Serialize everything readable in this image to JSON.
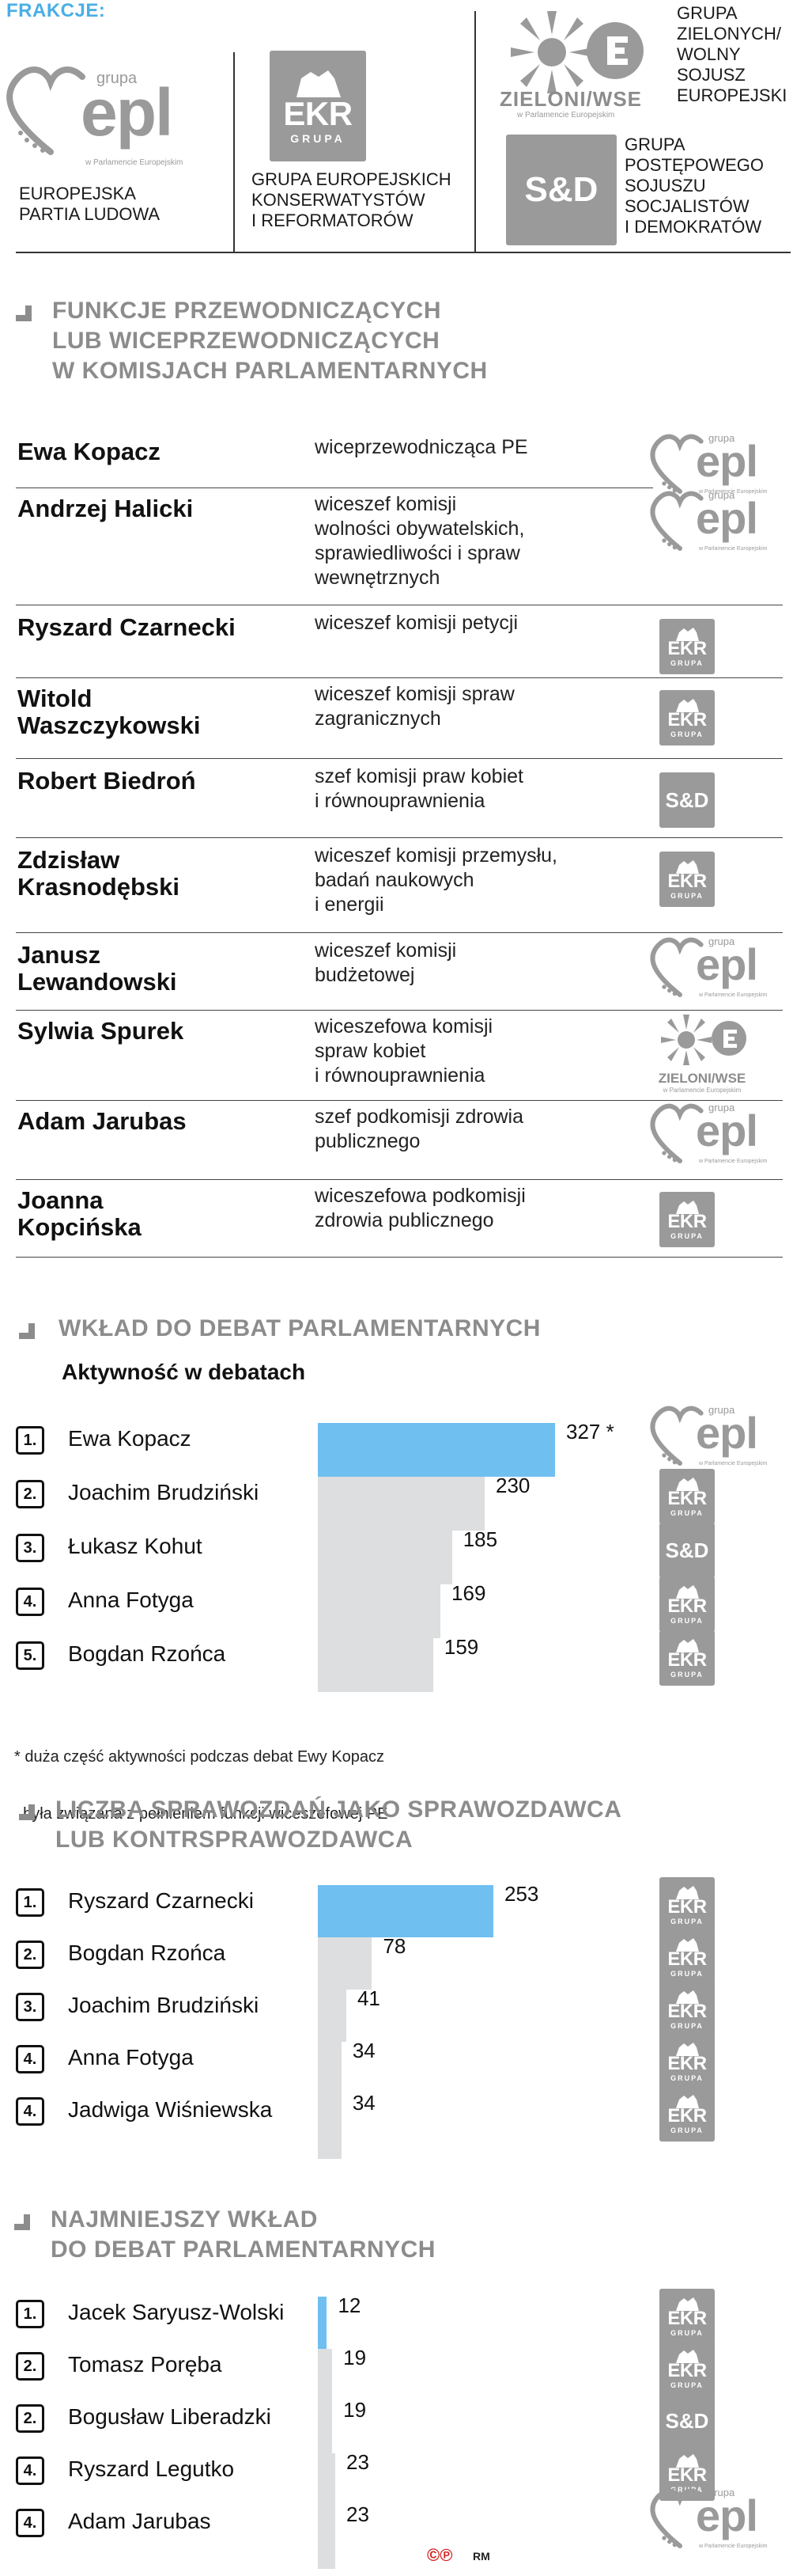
{
  "header": {
    "frakcje_label": "FRAKCJE:",
    "groups": {
      "epp": {
        "logo_small": "grupa",
        "logo_big": "epl",
        "logo_tag": "w Parlamencie Europejskim",
        "name_lines": [
          "EUROPEJSKA",
          "PARTIA LUDOWA"
        ]
      },
      "ecr": {
        "logo_main": "EKR",
        "logo_sub": "GRUPA",
        "name_lines": [
          "GRUPA EUROPEJSKICH",
          "KONSERWATYSTÓW",
          "I REFORMATORÓW"
        ]
      },
      "greens": {
        "logo_main": "ZIELONI/WSE",
        "logo_tag": "w Parlamencie Europejskim",
        "name_lines": [
          "GRUPA",
          "ZIELONYCH/",
          "WOLNY",
          "SOJUSZ",
          "EUROPEJSKI"
        ]
      },
      "sd": {
        "logo_main": "S&D",
        "name_lines": [
          "GRUPA",
          "POSTĘPOWEGO",
          "SOJUSZU",
          "SOCJALISTÓW",
          "I DEMOKRATÓW"
        ]
      }
    }
  },
  "section1": {
    "title_lines": [
      "FUNKCJE PRZEWODNICZĄCYCH",
      "LUB WICEPRZEWODNICZĄCYCH",
      "W KOMISJACH PARLAMENTARNYCH"
    ],
    "rows": [
      {
        "name": [
          "Ewa Kopacz"
        ],
        "role": [
          "wiceprzewodnicząca PE"
        ],
        "group": "epp"
      },
      {
        "name": [
          "Andrzej Halicki"
        ],
        "role": [
          "wiceszef komisji",
          "wolności obywatelskich,",
          "sprawiedliwości i spraw",
          "wewnętrznych"
        ],
        "group": "epp"
      },
      {
        "name": [
          "Ryszard Czarnecki"
        ],
        "role": [
          "wiceszef komisji petycji"
        ],
        "group": "ecr"
      },
      {
        "name": [
          "Witold",
          "Waszczykowski"
        ],
        "role": [
          "wiceszef komisji spraw",
          "zagranicznych"
        ],
        "group": "ecr"
      },
      {
        "name": [
          "Robert Biedroń"
        ],
        "role": [
          "szef komisji praw kobiet",
          "i równouprawnienia"
        ],
        "group": "sd"
      },
      {
        "name": [
          "Zdzisław",
          "Krasnodębski"
        ],
        "role": [
          "wiceszef komisji przemysłu,",
          "badań naukowych",
          "i energii"
        ],
        "group": "ecr"
      },
      {
        "name": [
          "Janusz",
          "Lewandowski"
        ],
        "role": [
          "wiceszef komisji",
          "budżetowej"
        ],
        "group": "epp"
      },
      {
        "name": [
          "Sylwia Spurek"
        ],
        "role": [
          "wiceszefowa komisji",
          "spraw kobiet",
          "i równouprawnienia"
        ],
        "group": "greens"
      },
      {
        "name": [
          "Adam Jarubas"
        ],
        "role": [
          "szef podkomisji zdrowia",
          "publicznego"
        ],
        "group": "epp"
      },
      {
        "name": [
          "Joanna",
          "Kopcińska"
        ],
        "role": [
          "wiceszefowa podkomisji",
          "zdrowia publicznego"
        ],
        "group": "ecr"
      }
    ]
  },
  "section2": {
    "title": "WKŁAD DO DEBAT PARLAMENTARNYCH",
    "subtitle": "Aktywność w debatach",
    "note_lines": [
      "* duża część aktywności podczas debat Ewy Kopacz",
      "  była związana z pełnieniem funkcji wiceszefowej PE"
    ]
  },
  "section3": {
    "title_lines": [
      "LICZBA SPRAWOZDAŃ JAKO SPRAWOZDAWCA",
      "LUB KONTRSPRAWOZDAWCA"
    ]
  },
  "section4": {
    "title_lines": [
      "NAJMNIEJSZY WKŁAD",
      "DO DEBAT PARLAMENTARNYCH"
    ]
  },
  "footer": {
    "credit": "RM"
  },
  "colors": {
    "accent_blue": "#6fbff0",
    "bar_gray": "#dcdedf",
    "section_gray": "#8c8c8c",
    "badge_gray": "#9a9a9a"
  },
  "chart_data": [
    {
      "type": "bar",
      "title": "Aktywność w debatach",
      "categories": [
        "Ewa Kopacz",
        "Joachim Brudziński",
        "Łukasz Kohut",
        "Anna Fotyga",
        "Bogdan Rzońca"
      ],
      "ranks": [
        "1.",
        "2.",
        "3.",
        "4.",
        "5."
      ],
      "values": [
        327,
        230,
        185,
        169,
        159
      ],
      "value_labels": [
        "327 *",
        "230",
        "185",
        "169",
        "159"
      ],
      "groups": [
        "epp",
        "ecr",
        "sd",
        "ecr",
        "ecr"
      ]
    },
    {
      "type": "bar",
      "title": "LICZBA SPRAWOZDAŃ JAKO SPRAWOZDAWCA LUB KONTRSPRAWOZDAWCA",
      "categories": [
        "Ryszard Czarnecki",
        "Bogdan Rzońca",
        "Joachim Brudziński",
        "Anna  Fotyga",
        "Jadwiga Wiśniewska"
      ],
      "ranks": [
        "1.",
        "2.",
        "3.",
        "4.",
        "4."
      ],
      "values": [
        253,
        78,
        41,
        34,
        34
      ],
      "value_labels": [
        "253",
        "78",
        "41",
        "34",
        "34"
      ],
      "groups": [
        "ecr",
        "ecr",
        "ecr",
        "ecr",
        "ecr"
      ]
    },
    {
      "type": "bar",
      "title": "NAJMNIEJSZY WKŁAD DO DEBAT PARLAMENTARNYCH",
      "categories": [
        "Jacek Saryusz-Wolski",
        "Tomasz Poręba",
        "Bogusław Liberadzki",
        "Ryszard Legutko",
        "Adam Jarubas"
      ],
      "ranks": [
        "1.",
        "2.",
        "2.",
        "4.",
        "4."
      ],
      "values": [
        12,
        19,
        19,
        23,
        23
      ],
      "value_labels": [
        "12",
        "19",
        "19",
        "23",
        "23"
      ],
      "groups": [
        "ecr",
        "ecr",
        "sd",
        "ecr",
        "epp"
      ]
    }
  ]
}
